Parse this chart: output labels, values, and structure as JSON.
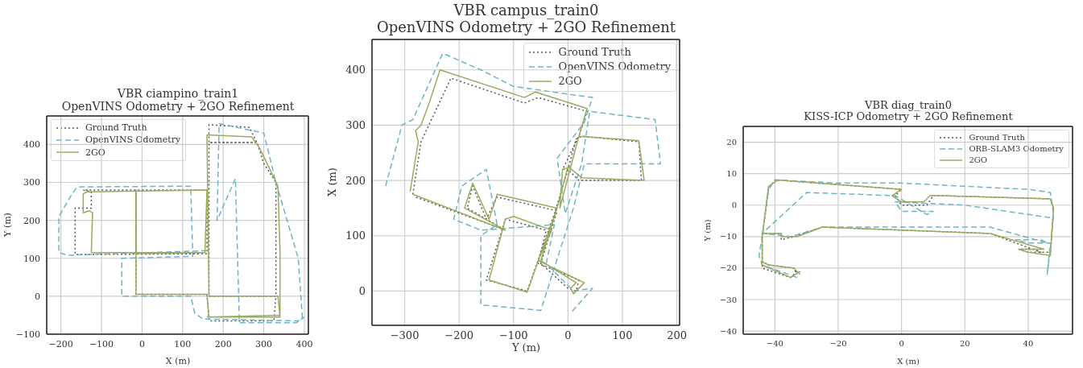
{
  "chart_data": [
    {
      "type": "line",
      "title": "VBR ciampino_train1\nOpenVINS Odometry + 2GO Refinement",
      "xlabel": "X (m)",
      "ylabel": "Y (m)",
      "xlim": [
        -235,
        410
      ],
      "ylim": [
        -100,
        475
      ],
      "xticks": [
        -200,
        -100,
        0,
        100,
        200,
        300,
        400
      ],
      "yticks": [
        -100,
        0,
        100,
        200,
        300,
        400
      ],
      "grid": true,
      "legend": "top left",
      "series": [
        {
          "name": "Ground Truth",
          "color": "#555555",
          "line_style": "dotted",
          "x": [
            160,
            -165,
            -165,
            -125,
            -125,
            -145,
            160,
            160,
            -15,
            -15,
            -15,
            160,
            165,
            325,
            330,
            165,
            165,
            280,
            165,
            165,
            265,
            285,
            300,
            330,
            330
          ],
          "values": [
            112,
            110,
            232,
            232,
            275,
            280,
            280,
            112,
            112,
            280,
            5,
            5,
            -65,
            -65,
            0,
            0,
            405,
            405,
            405,
            452,
            445,
            400,
            350,
            300,
            0
          ]
        },
        {
          "name": "OpenVINS Odometry",
          "color": "#6fb3c8",
          "line_style": "dashed",
          "x": [
            160,
            -185,
            -205,
            -205,
            -175,
            -160,
            120,
            125,
            -50,
            -50,
            120,
            130,
            150,
            385,
            395,
            385,
            330,
            300,
            190,
            185,
            230,
            240,
            380,
            400
          ],
          "values": [
            120,
            108,
            115,
            210,
            265,
            288,
            290,
            105,
            100,
            0,
            0,
            -45,
            -60,
            -65,
            -55,
            100,
            300,
            430,
            455,
            200,
            310,
            -70,
            -70,
            -55
          ]
        },
        {
          "name": "2GO",
          "color": "#9aab5e",
          "line_style": "solid",
          "x": [
            155,
            -125,
            -122,
            -130,
            -145,
            -145,
            -135,
            160,
            155,
            -15,
            -15,
            -15,
            160,
            165,
            340,
            335,
            165,
            160,
            270,
            290,
            335,
            340,
            340,
            160
          ],
          "values": [
            115,
            115,
            220,
            225,
            220,
            270,
            275,
            280,
            115,
            112,
            280,
            5,
            5,
            -55,
            -55,
            0,
            0,
            425,
            420,
            390,
            290,
            120,
            -50,
            -55
          ]
        }
      ]
    },
    {
      "type": "line",
      "title": "VBR campus_train0\nOpenVINS Odometry + 2GO Refinement",
      "xlabel": "Y (m)",
      "ylabel": "X (m)",
      "xlim": [
        -360,
        205
      ],
      "ylim": [
        -62,
        455
      ],
      "xticks": [
        -300,
        -200,
        -100,
        0,
        100,
        200
      ],
      "yticks": [
        0,
        100,
        200,
        300,
        400
      ],
      "grid": true,
      "legend": "top right",
      "series": [
        {
          "name": "Ground Truth",
          "color": "#555555",
          "line_style": "dotted",
          "x": [
            -285,
            -270,
            -215,
            -80,
            -55,
            35,
            20,
            -10,
            0,
            15,
            25,
            130,
            135,
            20,
            0,
            -25,
            -75,
            -150,
            -115,
            -40,
            -55,
            20,
            15,
            0,
            -50,
            -20,
            -130,
            -150,
            -175,
            -185,
            -115,
            -280
          ],
          "values": [
            175,
            270,
            385,
            340,
            350,
            325,
            280,
            220,
            220,
            275,
            280,
            270,
            200,
            200,
            220,
            140,
            0,
            20,
            130,
            110,
            50,
            20,
            0,
            5,
            50,
            145,
            170,
            130,
            190,
            150,
            110,
            170
          ]
        },
        {
          "name": "OpenVINS Odometry",
          "color": "#6fb3c8",
          "line_style": "dashed",
          "x": [
            -335,
            -305,
            -285,
            -230,
            -160,
            -100,
            45,
            30,
            -20,
            -5,
            25,
            40,
            160,
            170,
            30,
            10,
            -50,
            -160,
            -160,
            -130,
            -150,
            -195,
            -210,
            -160,
            -25,
            -40,
            10,
            45,
            5
          ],
          "values": [
            190,
            300,
            310,
            430,
            400,
            370,
            350,
            305,
            240,
            140,
            230,
            325,
            310,
            230,
            230,
            150,
            -35,
            -25,
            100,
            120,
            220,
            190,
            130,
            110,
            120,
            50,
            0,
            5,
            -40
          ]
        },
        {
          "name": "2GO",
          "color": "#9aab5e",
          "line_style": "solid",
          "x": [
            -290,
            -275,
            -280,
            -270,
            -255,
            -235,
            -80,
            -60,
            35,
            20,
            -15,
            -10,
            5,
            20,
            130,
            140,
            25,
            0,
            -20,
            -75,
            -145,
            -115,
            -100,
            -30,
            -55,
            30,
            10,
            5,
            15,
            -50,
            -20,
            -130,
            -145,
            -175,
            -190,
            -115,
            -285
          ],
          "values": [
            180,
            270,
            290,
            300,
            340,
            400,
            350,
            360,
            330,
            280,
            150,
            220,
            225,
            280,
            272,
            200,
            205,
            225,
            150,
            -2,
            20,
            130,
            135,
            110,
            55,
            15,
            -5,
            5,
            15,
            55,
            150,
            175,
            130,
            195,
            150,
            110,
            175
          ]
        }
      ]
    },
    {
      "type": "line",
      "title": "VBR diag_train0\nKISS-ICP Odometry + 2GO Refinement",
      "xlabel": "X (m)",
      "ylabel": "Y (m)",
      "xlim": [
        -50,
        54
      ],
      "ylim": [
        -41,
        25
      ],
      "xticks": [
        -40,
        -20,
        0,
        20,
        40
      ],
      "yticks": [
        -40,
        -30,
        -20,
        -10,
        0,
        10,
        20
      ],
      "grid": true,
      "legend": "top right",
      "series": [
        {
          "name": "Ground Truth",
          "color": "#555555",
          "line_style": "dotted",
          "x": [
            -33,
            -35,
            -44,
            -44,
            -42,
            -40,
            0,
            -2,
            0,
            8,
            10,
            12,
            47,
            48,
            47,
            40,
            37,
            42,
            44,
            28,
            -25,
            -34,
            -38,
            -38,
            -44,
            -44,
            -42,
            -34,
            -33
          ],
          "values": [
            -21,
            -23,
            -20,
            -10,
            5,
            8,
            5,
            3,
            0,
            0,
            3,
            3,
            2,
            -1,
            -15,
            -15,
            -14,
            -14,
            -15,
            -9,
            -7,
            -10,
            -11,
            -9,
            -9,
            -18,
            -19,
            -20,
            -22
          ]
        },
        {
          "name": "ORB-SLAM3 Odometry",
          "color": "#6fb3c8",
          "line_style": "dashed",
          "x": [
            -33,
            -44,
            -45,
            -44,
            -42,
            -40,
            -20,
            0,
            20,
            40,
            47,
            48,
            47,
            46,
            47,
            40,
            36,
            44,
            46,
            28,
            0,
            -25,
            -35,
            -44,
            -30,
            -2,
            8,
            10,
            0,
            -2,
            20,
            47
          ],
          "values": [
            -23,
            -19,
            -16,
            -10,
            5,
            8,
            7,
            7,
            6,
            5,
            4,
            -3,
            -14,
            -22,
            -12,
            -12,
            -11,
            -11,
            -12,
            -7,
            -7,
            -7,
            -10,
            -9,
            4,
            3,
            -3,
            -2,
            -2,
            1,
            0,
            -4
          ]
        },
        {
          "name": "2GO",
          "color": "#9aab5e",
          "line_style": "solid",
          "x": [
            -32,
            -35,
            -44,
            -44,
            -42,
            -39,
            0,
            -3,
            0,
            7,
            9,
            13,
            47,
            48,
            47,
            40,
            37,
            42,
            45,
            28,
            -25,
            -33,
            -38,
            -38,
            -44,
            -44,
            -42,
            -34,
            -32
          ],
          "values": [
            -21,
            -23,
            -19,
            -10,
            6,
            8,
            5,
            3,
            1,
            1,
            3,
            3,
            2,
            -1,
            -16,
            -15,
            -14,
            -14,
            -14,
            -9,
            -7,
            -10,
            -10,
            -9,
            -9,
            -18,
            -19,
            -20,
            -22
          ]
        }
      ]
    }
  ]
}
